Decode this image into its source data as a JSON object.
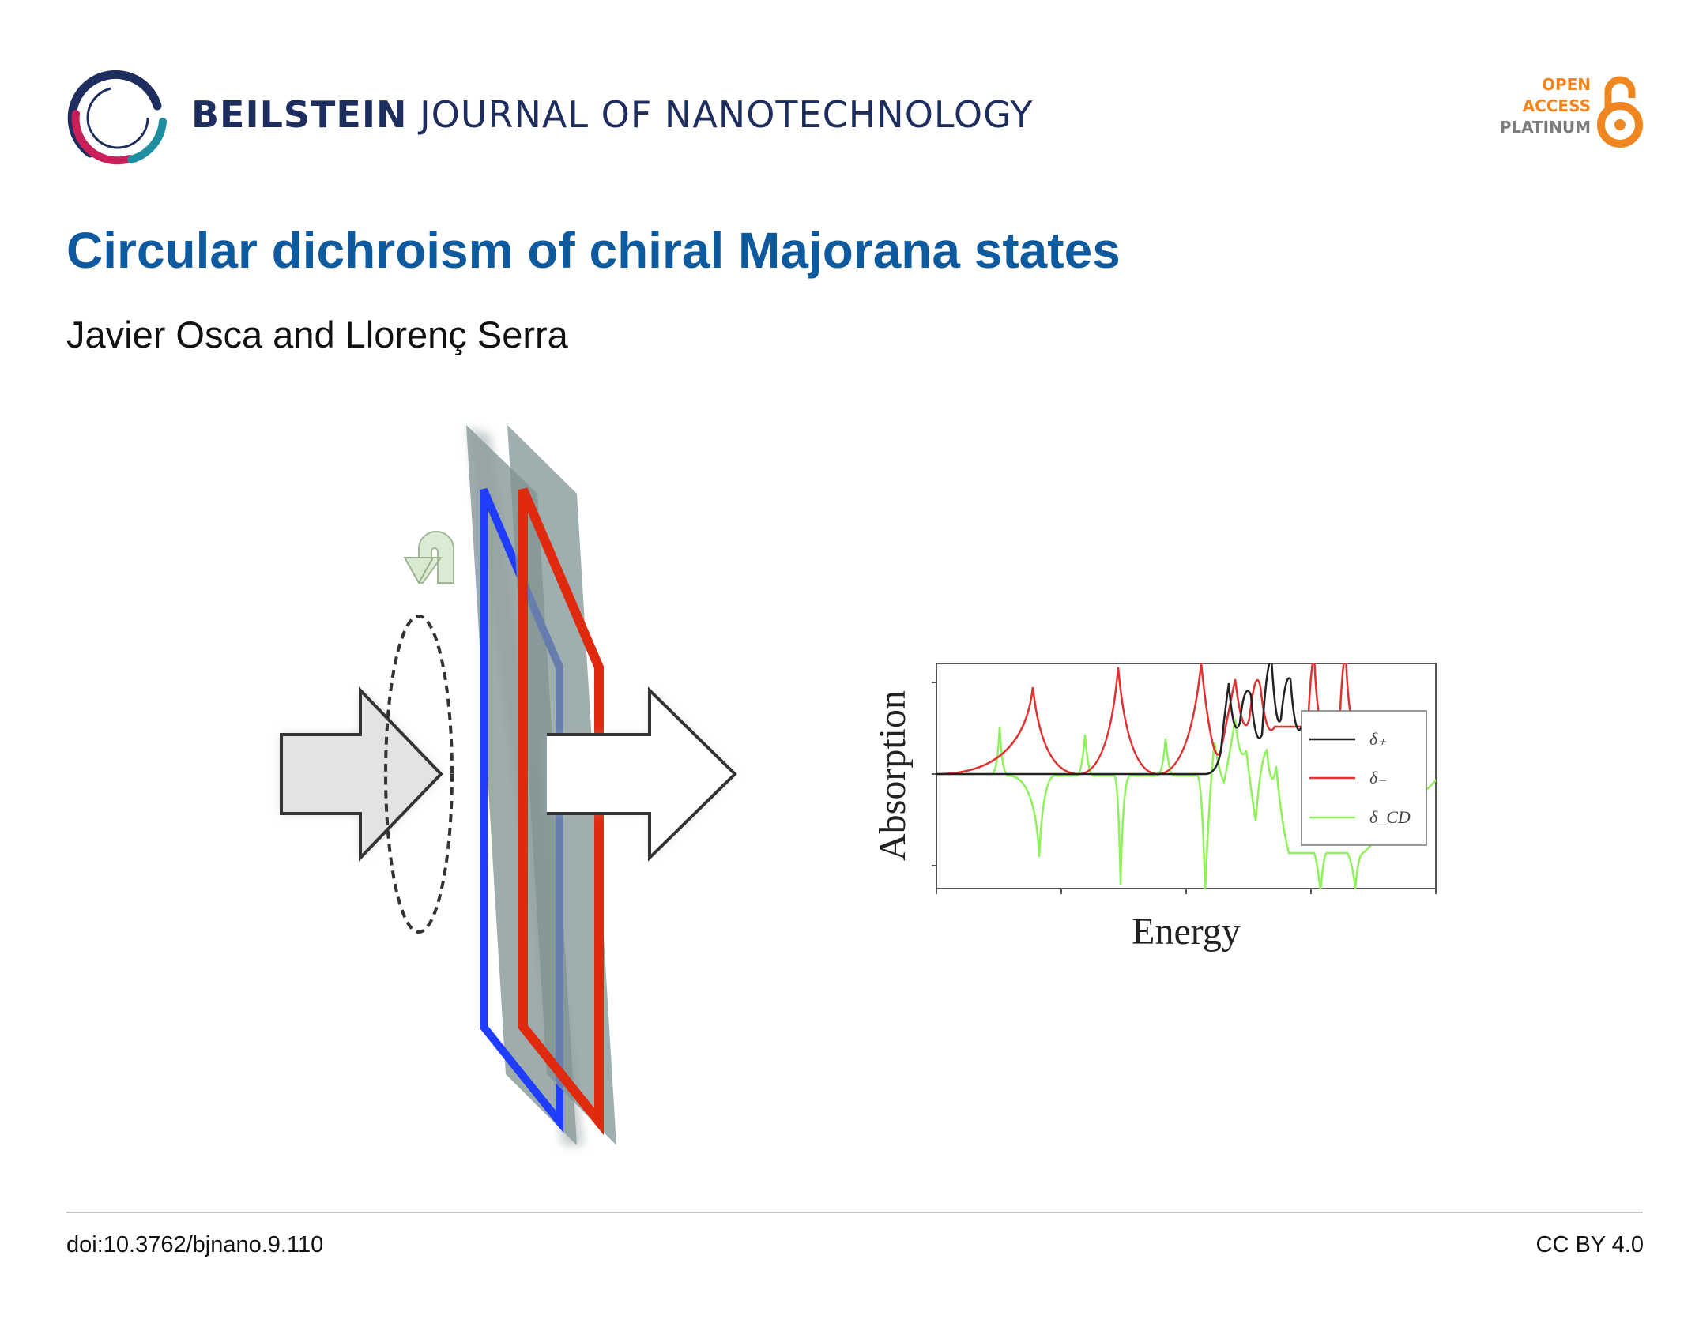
{
  "header": {
    "journal_bold": "BEILSTEIN",
    "journal_rest": "JOURNAL OF NANOTECHNOLOGY",
    "logo_icon": "beilstein-ring-logo",
    "badge": {
      "line1": "OPEN",
      "line2": "ACCESS",
      "line3": "PLATINUM",
      "icon": "open-access-lock-icon",
      "colors": {
        "orange": "#f0861f",
        "grey": "#7c7c7c"
      }
    }
  },
  "article": {
    "title": "Circular dichroism of chiral Majorana states",
    "authors": "Javier Osca and Llorenç Serra"
  },
  "figure": {
    "colors": {
      "blue_loop": "#1f3cff",
      "red_loop": "#e02a10",
      "plate": "#8e9e9e",
      "arrow": "#e3e3e3",
      "curl_arrow": "#d7ead0"
    },
    "chart_data": {
      "type": "line",
      "xlabel": "Energy",
      "ylabel": "Absorption",
      "legend_position": "right",
      "series": [
        {
          "name": "δ₊",
          "color": "#222222"
        },
        {
          "name": "δ₋",
          "color": "#e03030"
        },
        {
          "name": "δ_CD",
          "color": "#8ef05a"
        }
      ]
    }
  },
  "footer": {
    "doi": "doi:10.3762/bjnano.9.110",
    "license": "CC BY 4.0"
  }
}
